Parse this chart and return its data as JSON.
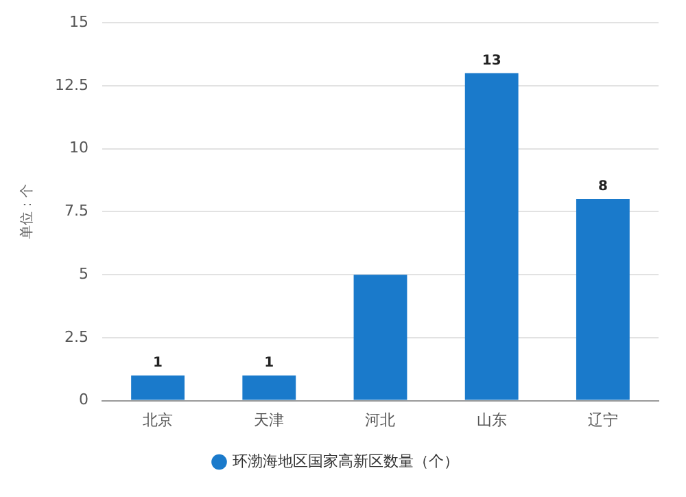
{
  "chart_data": {
    "type": "bar",
    "ylabel": "单位：个",
    "categories": [
      "北京",
      "天津",
      "河北",
      "山东",
      "辽宁"
    ],
    "series": [
      {
        "name": "环渤海地区国家高新区数量（个）",
        "color": "#1a7acb",
        "values": [
          1,
          1,
          5,
          13,
          8
        ],
        "value_labels": [
          "1",
          "1",
          null,
          "13",
          "8"
        ]
      }
    ],
    "ylim": [
      0,
      15
    ],
    "yticks": [
      0,
      2.5,
      5,
      7.5,
      10,
      12.5,
      15
    ],
    "grid": "y",
    "legend": "bottom"
  }
}
